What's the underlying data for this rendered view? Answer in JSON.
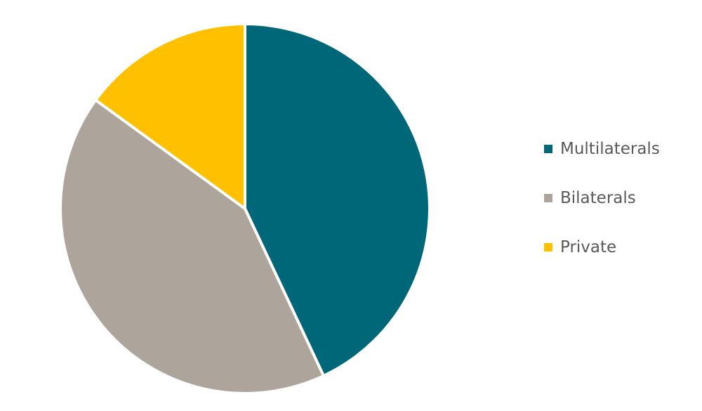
{
  "chart_data": {
    "type": "pie",
    "title": "",
    "slices": [
      {
        "name": "Multilaterals",
        "value": 43,
        "color": "#006779"
      },
      {
        "name": "Bilaterals",
        "value": 42,
        "color": "#ada59c"
      },
      {
        "name": "Private",
        "value": 15,
        "color": "#ffc000"
      }
    ],
    "legend_position": "right"
  },
  "legend": {
    "items": [
      {
        "label": "Multilaterals",
        "color": "#006779"
      },
      {
        "label": "Bilaterals",
        "color": "#ada59c"
      },
      {
        "label": "Private",
        "color": "#ffc000"
      }
    ]
  }
}
